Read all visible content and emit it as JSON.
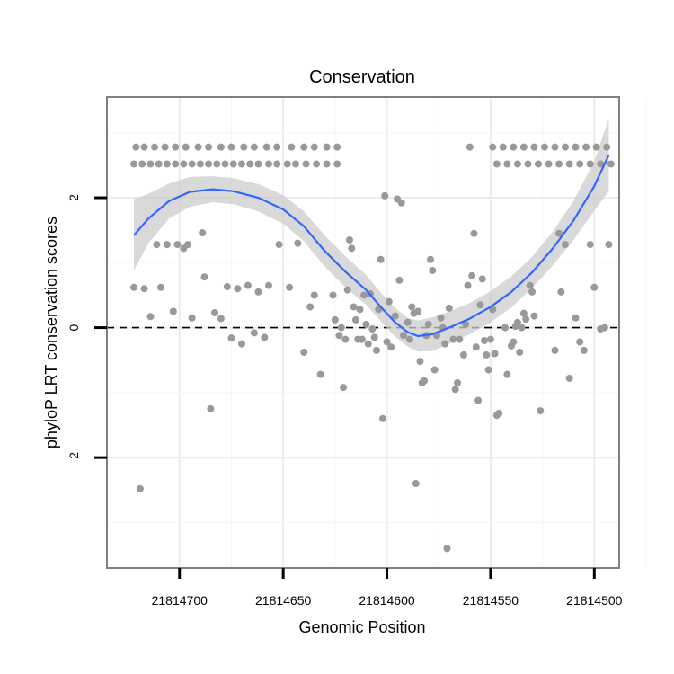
{
  "chart_data": {
    "type": "scatter",
    "title": "Conservation",
    "xlabel": "Genomic Position",
    "ylabel": "phyloP LRT conservation scores",
    "x_reversed": true,
    "xlim": [
      21814735,
      21814488
    ],
    "ylim": [
      -3.7,
      3.55
    ],
    "xticks": [
      21814700,
      21814650,
      21814600,
      21814550,
      21814500
    ],
    "xtick_labels": [
      "21814700",
      "21814650",
      "21814600",
      "21814550",
      "21814500"
    ],
    "yticks": [
      2,
      0,
      -2
    ],
    "ytick_labels": [
      "2",
      "0",
      "-2"
    ],
    "grid": true,
    "reference_line": {
      "y": 0,
      "style": "dashed"
    },
    "point_color": "#999999",
    "smooth_color": "#3366FF",
    "band_color": "#cccccc",
    "points": [
      {
        "x": 21814721,
        "y": 2.78
      },
      {
        "x": 21814717,
        "y": 2.78
      },
      {
        "x": 21814712,
        "y": 2.78
      },
      {
        "x": 21814707,
        "y": 2.78
      },
      {
        "x": 21814702,
        "y": 2.78
      },
      {
        "x": 21814697,
        "y": 2.78
      },
      {
        "x": 21814691,
        "y": 2.78
      },
      {
        "x": 21814686,
        "y": 2.78
      },
      {
        "x": 21814680,
        "y": 2.78
      },
      {
        "x": 21814675,
        "y": 2.78
      },
      {
        "x": 21814669,
        "y": 2.78
      },
      {
        "x": 21814664,
        "y": 2.78
      },
      {
        "x": 21814658,
        "y": 2.78
      },
      {
        "x": 21814653,
        "y": 2.78
      },
      {
        "x": 21814646,
        "y": 2.78
      },
      {
        "x": 21814640,
        "y": 2.78
      },
      {
        "x": 21814635,
        "y": 2.78
      },
      {
        "x": 21814629,
        "y": 2.78
      },
      {
        "x": 21814624,
        "y": 2.78
      },
      {
        "x": 21814549,
        "y": 2.78
      },
      {
        "x": 21814544,
        "y": 2.78
      },
      {
        "x": 21814539,
        "y": 2.78
      },
      {
        "x": 21814534,
        "y": 2.78
      },
      {
        "x": 21814529,
        "y": 2.78
      },
      {
        "x": 21814524,
        "y": 2.78
      },
      {
        "x": 21814519,
        "y": 2.78
      },
      {
        "x": 21814514,
        "y": 2.78
      },
      {
        "x": 21814509,
        "y": 2.78
      },
      {
        "x": 21814504,
        "y": 2.78
      },
      {
        "x": 21814499,
        "y": 2.78
      },
      {
        "x": 21814494,
        "y": 2.78
      },
      {
        "x": 21814722,
        "y": 2.52
      },
      {
        "x": 21814718,
        "y": 2.52
      },
      {
        "x": 21814714,
        "y": 2.52
      },
      {
        "x": 21814710,
        "y": 2.52
      },
      {
        "x": 21814706,
        "y": 2.52
      },
      {
        "x": 21814702,
        "y": 2.52
      },
      {
        "x": 21814698,
        "y": 2.52
      },
      {
        "x": 21814694,
        "y": 2.52
      },
      {
        "x": 21814690,
        "y": 2.52
      },
      {
        "x": 21814686,
        "y": 2.52
      },
      {
        "x": 21814682,
        "y": 2.52
      },
      {
        "x": 21814678,
        "y": 2.52
      },
      {
        "x": 21814674,
        "y": 2.52
      },
      {
        "x": 21814670,
        "y": 2.52
      },
      {
        "x": 21814666,
        "y": 2.52
      },
      {
        "x": 21814662,
        "y": 2.52
      },
      {
        "x": 21814657,
        "y": 2.52
      },
      {
        "x": 21814653,
        "y": 2.52
      },
      {
        "x": 21814648,
        "y": 2.52
      },
      {
        "x": 21814644,
        "y": 2.52
      },
      {
        "x": 21814639,
        "y": 2.52
      },
      {
        "x": 21814634,
        "y": 2.52
      },
      {
        "x": 21814629,
        "y": 2.52
      },
      {
        "x": 21814624,
        "y": 2.52
      },
      {
        "x": 21814547,
        "y": 2.52
      },
      {
        "x": 21814542,
        "y": 2.52
      },
      {
        "x": 21814537,
        "y": 2.52
      },
      {
        "x": 21814532,
        "y": 2.52
      },
      {
        "x": 21814527,
        "y": 2.52
      },
      {
        "x": 21814522,
        "y": 2.52
      },
      {
        "x": 21814517,
        "y": 2.52
      },
      {
        "x": 21814512,
        "y": 2.52
      },
      {
        "x": 21814507,
        "y": 2.52
      },
      {
        "x": 21814502,
        "y": 2.52
      },
      {
        "x": 21814497,
        "y": 2.52
      },
      {
        "x": 21814492,
        "y": 2.52
      },
      {
        "x": 21814722,
        "y": 0.62
      },
      {
        "x": 21814719,
        "y": -2.48
      },
      {
        "x": 21814717,
        "y": 0.6
      },
      {
        "x": 21814714,
        "y": 0.17
      },
      {
        "x": 21814711,
        "y": 1.28
      },
      {
        "x": 21814709,
        "y": 0.62
      },
      {
        "x": 21814706,
        "y": 1.28
      },
      {
        "x": 21814703,
        "y": 0.25
      },
      {
        "x": 21814701,
        "y": 1.28
      },
      {
        "x": 21814698,
        "y": 1.22
      },
      {
        "x": 21814696,
        "y": 1.28
      },
      {
        "x": 21814694,
        "y": 0.15
      },
      {
        "x": 21814689,
        "y": 1.46
      },
      {
        "x": 21814688,
        "y": 0.78
      },
      {
        "x": 21814685,
        "y": -1.25
      },
      {
        "x": 21814683,
        "y": 0.23
      },
      {
        "x": 21814680,
        "y": 0.14
      },
      {
        "x": 21814677,
        "y": 0.63
      },
      {
        "x": 21814675,
        "y": -0.16
      },
      {
        "x": 21814672,
        "y": 0.6
      },
      {
        "x": 21814670,
        "y": -0.25
      },
      {
        "x": 21814667,
        "y": 0.65
      },
      {
        "x": 21814664,
        "y": -0.08
      },
      {
        "x": 21814662,
        "y": 0.55
      },
      {
        "x": 21814659,
        "y": -0.15
      },
      {
        "x": 21814657,
        "y": 0.65
      },
      {
        "x": 21814652,
        "y": 1.28
      },
      {
        "x": 21814647,
        "y": 0.62
      },
      {
        "x": 21814643,
        "y": 1.3
      },
      {
        "x": 21814640,
        "y": -0.38
      },
      {
        "x": 21814637,
        "y": 0.32
      },
      {
        "x": 21814635,
        "y": 0.5
      },
      {
        "x": 21814632,
        "y": -0.72
      },
      {
        "x": 21814626,
        "y": 0.5
      },
      {
        "x": 21814625,
        "y": 0.12
      },
      {
        "x": 21814623,
        "y": -0.12
      },
      {
        "x": 21814622,
        "y": 0.0
      },
      {
        "x": 21814621,
        "y": -0.92
      },
      {
        "x": 21814620,
        "y": -0.18
      },
      {
        "x": 21814619,
        "y": 0.58
      },
      {
        "x": 21814618,
        "y": 1.35
      },
      {
        "x": 21814617,
        "y": 1.22
      },
      {
        "x": 21814616,
        "y": 0.32
      },
      {
        "x": 21814615,
        "y": 0.12
      },
      {
        "x": 21814614,
        "y": -0.18
      },
      {
        "x": 21814613,
        "y": 0.28
      },
      {
        "x": 21814612,
        "y": -0.18
      },
      {
        "x": 21814611,
        "y": 0.5
      },
      {
        "x": 21814610,
        "y": 0.05
      },
      {
        "x": 21814609,
        "y": -0.25
      },
      {
        "x": 21814608,
        "y": 0.52
      },
      {
        "x": 21814607,
        "y": -0.02
      },
      {
        "x": 21814606,
        "y": -0.15
      },
      {
        "x": 21814605,
        "y": -0.35
      },
      {
        "x": 21814604,
        "y": 0.28
      },
      {
        "x": 21814603,
        "y": 1.05
      },
      {
        "x": 21814602,
        "y": -1.4
      },
      {
        "x": 21814601,
        "y": 2.03
      },
      {
        "x": 21814600,
        "y": -0.22
      },
      {
        "x": 21814599,
        "y": 0.4
      },
      {
        "x": 21814598,
        "y": -0.3
      },
      {
        "x": 21814596,
        "y": 0.18
      },
      {
        "x": 21814595,
        "y": 1.98
      },
      {
        "x": 21814594,
        "y": 0.73
      },
      {
        "x": 21814593,
        "y": 1.92
      },
      {
        "x": 21814592,
        "y": -0.12
      },
      {
        "x": 21814590,
        "y": 0.08
      },
      {
        "x": 21814589,
        "y": -0.18
      },
      {
        "x": 21814588,
        "y": 0.32
      },
      {
        "x": 21814587,
        "y": 0.22
      },
      {
        "x": 21814586,
        "y": -2.4
      },
      {
        "x": 21814585,
        "y": 0.25
      },
      {
        "x": 21814584,
        "y": -0.52
      },
      {
        "x": 21814583,
        "y": -0.85
      },
      {
        "x": 21814582,
        "y": -0.82
      },
      {
        "x": 21814581,
        "y": -0.12
      },
      {
        "x": 21814580,
        "y": 0.05
      },
      {
        "x": 21814579,
        "y": 1.05
      },
      {
        "x": 21814578,
        "y": 0.88
      },
      {
        "x": 21814577,
        "y": -0.65
      },
      {
        "x": 21814576,
        "y": -0.12
      },
      {
        "x": 21814574,
        "y": 0.15
      },
      {
        "x": 21814573,
        "y": 0.0
      },
      {
        "x": 21814572,
        "y": -0.25
      },
      {
        "x": 21814571,
        "y": -3.4
      },
      {
        "x": 21814570,
        "y": 0.3
      },
      {
        "x": 21814568,
        "y": -0.18
      },
      {
        "x": 21814567,
        "y": -0.95
      },
      {
        "x": 21814566,
        "y": -0.85
      },
      {
        "x": 21814565,
        "y": -0.18
      },
      {
        "x": 21814563,
        "y": -0.42
      },
      {
        "x": 21814562,
        "y": 0.05
      },
      {
        "x": 21814561,
        "y": 0.65
      },
      {
        "x": 21814560,
        "y": 2.78
      },
      {
        "x": 21814559,
        "y": 0.8
      },
      {
        "x": 21814558,
        "y": 1.45
      },
      {
        "x": 21814557,
        "y": -0.3
      },
      {
        "x": 21814556,
        "y": -1.12
      },
      {
        "x": 21814555,
        "y": 0.35
      },
      {
        "x": 21814554,
        "y": 0.75
      },
      {
        "x": 21814553,
        "y": -0.2
      },
      {
        "x": 21814552,
        "y": -0.42
      },
      {
        "x": 21814551,
        "y": -0.65
      },
      {
        "x": 21814550,
        "y": -0.18
      },
      {
        "x": 21814549,
        "y": 0.28
      },
      {
        "x": 21814548,
        "y": -0.4
      },
      {
        "x": 21814547,
        "y": -1.35
      },
      {
        "x": 21814546,
        "y": -1.32
      },
      {
        "x": 21814543,
        "y": 0.0
      },
      {
        "x": 21814542,
        "y": -0.72
      },
      {
        "x": 21814540,
        "y": -0.28
      },
      {
        "x": 21814539,
        "y": -0.22
      },
      {
        "x": 21814538,
        "y": 0.02
      },
      {
        "x": 21814537,
        "y": 0.08
      },
      {
        "x": 21814536,
        "y": -0.38
      },
      {
        "x": 21814535,
        "y": 0.0
      },
      {
        "x": 21814534,
        "y": 0.22
      },
      {
        "x": 21814533,
        "y": 0.13
      },
      {
        "x": 21814531,
        "y": 0.65
      },
      {
        "x": 21814530,
        "y": 0.55
      },
      {
        "x": 21814529,
        "y": 0.18
      },
      {
        "x": 21814526,
        "y": -1.28
      },
      {
        "x": 21814519,
        "y": -0.35
      },
      {
        "x": 21814517,
        "y": 1.45
      },
      {
        "x": 21814516,
        "y": 0.55
      },
      {
        "x": 21814514,
        "y": 1.28
      },
      {
        "x": 21814512,
        "y": -0.78
      },
      {
        "x": 21814509,
        "y": 0.15
      },
      {
        "x": 21814507,
        "y": -0.22
      },
      {
        "x": 21814505,
        "y": -0.35
      },
      {
        "x": 21814502,
        "y": 1.28
      },
      {
        "x": 21814500,
        "y": 0.62
      },
      {
        "x": 21814497,
        "y": -0.02
      },
      {
        "x": 21814495,
        "y": 0.0
      },
      {
        "x": 21814493,
        "y": 1.28
      }
    ],
    "smooth": [
      {
        "x": 21814722,
        "y": 1.42,
        "lo": 0.88,
        "hi": 1.98
      },
      {
        "x": 21814715,
        "y": 1.68,
        "lo": 1.3,
        "hi": 2.06
      },
      {
        "x": 21814705,
        "y": 1.95,
        "lo": 1.68,
        "hi": 2.22
      },
      {
        "x": 21814695,
        "y": 2.09,
        "lo": 1.86,
        "hi": 2.32
      },
      {
        "x": 21814684,
        "y": 2.13,
        "lo": 1.93,
        "hi": 2.33
      },
      {
        "x": 21814674,
        "y": 2.1,
        "lo": 1.9,
        "hi": 2.3
      },
      {
        "x": 21814662,
        "y": 2.0,
        "lo": 1.79,
        "hi": 2.21
      },
      {
        "x": 21814650,
        "y": 1.82,
        "lo": 1.6,
        "hi": 2.04
      },
      {
        "x": 21814640,
        "y": 1.56,
        "lo": 1.33,
        "hi": 1.79
      },
      {
        "x": 21814630,
        "y": 1.18,
        "lo": 0.94,
        "hi": 1.42
      },
      {
        "x": 21814620,
        "y": 0.86,
        "lo": 0.62,
        "hi": 1.1
      },
      {
        "x": 21814610,
        "y": 0.58,
        "lo": 0.35,
        "hi": 0.81
      },
      {
        "x": 21814603,
        "y": 0.32,
        "lo": 0.1,
        "hi": 0.54
      },
      {
        "x": 21814596,
        "y": 0.08,
        "lo": -0.14,
        "hi": 0.3
      },
      {
        "x": 21814590,
        "y": -0.07,
        "lo": -0.29,
        "hi": 0.15
      },
      {
        "x": 21814585,
        "y": -0.13,
        "lo": -0.37,
        "hi": 0.11
      },
      {
        "x": 21814578,
        "y": -0.1,
        "lo": -0.36,
        "hi": 0.16
      },
      {
        "x": 21814570,
        "y": 0.0,
        "lo": -0.25,
        "hi": 0.25
      },
      {
        "x": 21814560,
        "y": 0.14,
        "lo": -0.1,
        "hi": 0.38
      },
      {
        "x": 21814550,
        "y": 0.32,
        "lo": 0.08,
        "hi": 0.56
      },
      {
        "x": 21814540,
        "y": 0.55,
        "lo": 0.31,
        "hi": 0.79
      },
      {
        "x": 21814530,
        "y": 0.85,
        "lo": 0.61,
        "hi": 1.09
      },
      {
        "x": 21814520,
        "y": 1.22,
        "lo": 0.96,
        "hi": 1.48
      },
      {
        "x": 21814510,
        "y": 1.65,
        "lo": 1.35,
        "hi": 1.95
      },
      {
        "x": 21814500,
        "y": 2.18,
        "lo": 1.8,
        "hi": 2.56
      },
      {
        "x": 21814493,
        "y": 2.66,
        "lo": 2.1,
        "hi": 3.22
      }
    ]
  }
}
